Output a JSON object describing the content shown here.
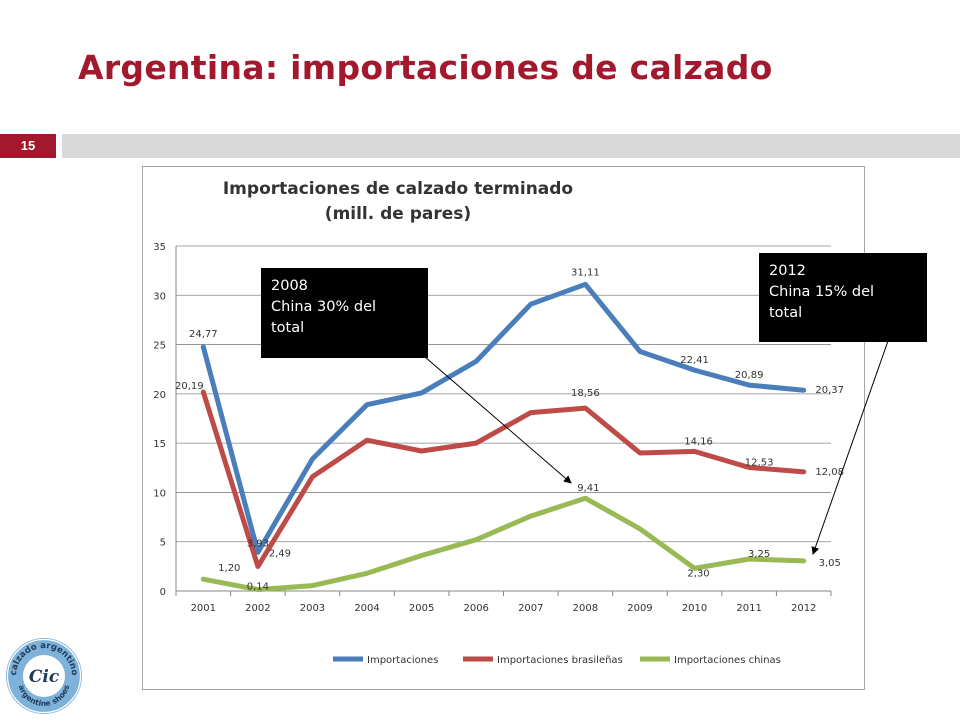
{
  "slide": {
    "title": "Argentina: importaciones de calzado",
    "page_number": "15"
  },
  "callouts": [
    {
      "lines": [
        "2008",
        "China 30% del",
        "total"
      ]
    },
    {
      "lines": [
        "2012",
        "China 15% del",
        "total"
      ]
    }
  ],
  "logo": {
    "top_text": "calzado argentino",
    "bottom_text": "argentine shoes",
    "center_text": "Cic"
  },
  "chart_data": {
    "type": "line",
    "title": [
      "Importaciones de calzado terminado",
      "(mill. de pares)"
    ],
    "xlabel": "",
    "ylabel": "",
    "categories": [
      "2001",
      "2002",
      "2003",
      "2004",
      "2005",
      "2006",
      "2007",
      "2008",
      "2009",
      "2010",
      "2011",
      "2012"
    ],
    "ylim": [
      0,
      35
    ],
    "yticks": [
      0,
      5,
      10,
      15,
      20,
      25,
      30,
      35
    ],
    "grid": true,
    "legend": "bottom",
    "series": [
      {
        "name": "Importaciones",
        "color": "#4a7ebb",
        "values": [
          24.77,
          3.93,
          13.4,
          18.9,
          20.1,
          23.3,
          29.1,
          31.11,
          24.3,
          22.41,
          20.89,
          20.37
        ],
        "labels": [
          [
            0,
            "24,77"
          ],
          [
            1,
            "3,93"
          ],
          [
            7,
            "31,11"
          ],
          [
            9,
            "22,41"
          ],
          [
            10,
            "20,89"
          ],
          [
            11,
            "20,37"
          ]
        ]
      },
      {
        "name": "Importaciones brasileñas",
        "color": "#be4b48",
        "values": [
          20.19,
          2.49,
          11.6,
          15.3,
          14.2,
          15.0,
          18.1,
          18.56,
          14.0,
          14.16,
          12.53,
          12.08
        ],
        "labels": [
          [
            0,
            "20,19"
          ],
          [
            1,
            "2,49"
          ],
          [
            7,
            "18,56"
          ],
          [
            9,
            "14,16"
          ],
          [
            10,
            "12,53"
          ],
          [
            11,
            "12,08"
          ]
        ]
      },
      {
        "name": "Importaciones chinas",
        "color": "#98b954",
        "values": [
          1.2,
          0.14,
          0.55,
          1.8,
          3.6,
          5.2,
          7.6,
          9.41,
          6.3,
          2.3,
          3.25,
          3.05
        ],
        "labels": [
          [
            0,
            "1,20"
          ],
          [
            1,
            "0,14"
          ],
          [
            7,
            "9,41"
          ],
          [
            9,
            "2,30"
          ],
          [
            10,
            "3,25"
          ],
          [
            11,
            "3,05"
          ]
        ]
      }
    ]
  }
}
